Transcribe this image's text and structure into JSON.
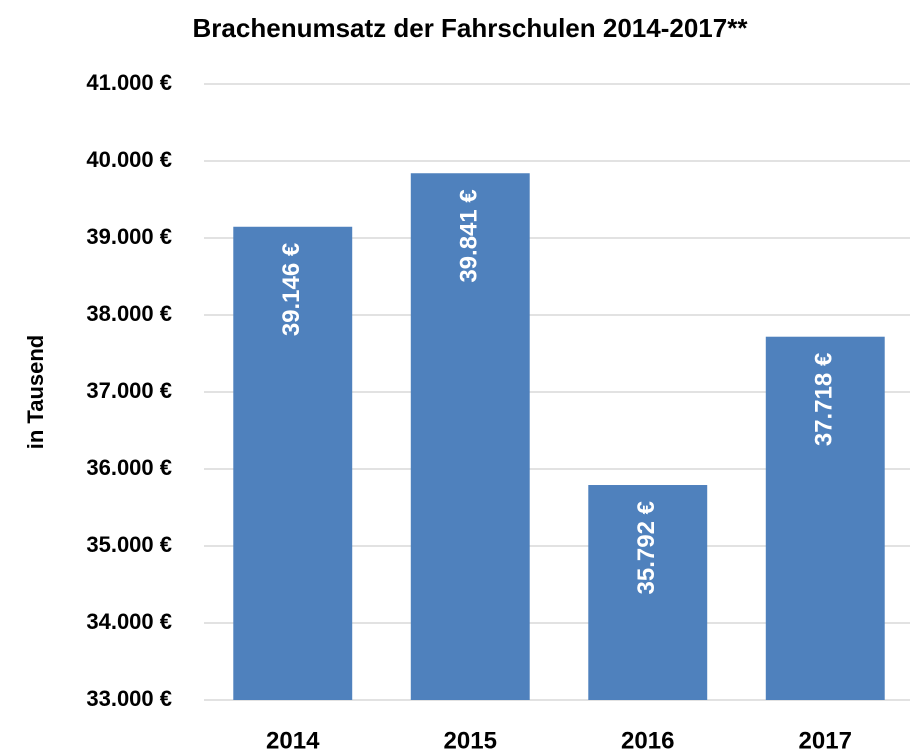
{
  "chart_data": {
    "type": "bar",
    "title": "Brachenumsatz der Fahrschulen 2014-2017**",
    "y_label": "in Tausend",
    "categories": [
      "2014",
      "2015",
      "2016",
      "2017"
    ],
    "values": [
      39146,
      39841,
      35792,
      37718
    ],
    "value_labels": [
      "39.146 €",
      "39.841 €",
      "35.792 €",
      "37.718 €"
    ],
    "color": "#4f81bd",
    "ylim": [
      33000,
      41000
    ],
    "yticks": [
      {
        "value": 33000,
        "label": "33.000 €"
      },
      {
        "value": 34000,
        "label": "34.000 €"
      },
      {
        "value": 35000,
        "label": "35.000 €"
      },
      {
        "value": 36000,
        "label": "36.000 €"
      },
      {
        "value": 37000,
        "label": "37.000 €"
      },
      {
        "value": 38000,
        "label": "38.000 €"
      },
      {
        "value": 39000,
        "label": "39.000 €"
      },
      {
        "value": 40000,
        "label": "40.000 €"
      },
      {
        "value": 41000,
        "label": "41.000 €"
      }
    ],
    "grid": true
  }
}
